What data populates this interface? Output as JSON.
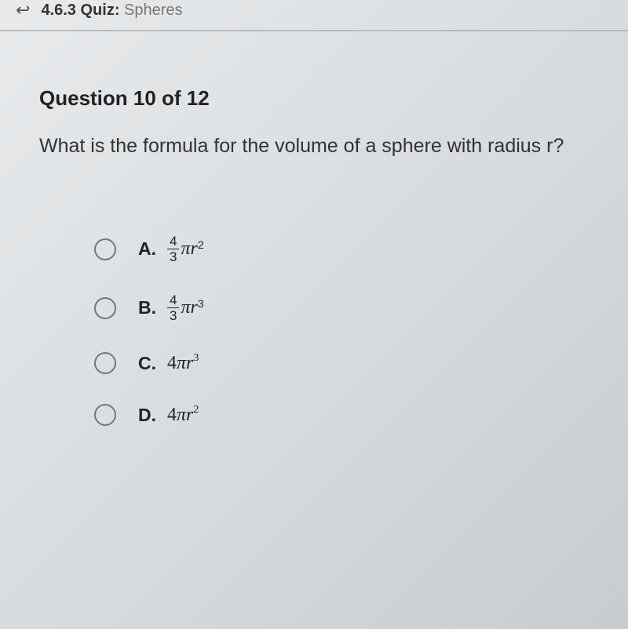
{
  "header": {
    "section_number": "4.6.3",
    "quiz_label": "Quiz:",
    "topic": "Spheres"
  },
  "question": {
    "number_label": "Question 10 of 12",
    "text": "What is the formula for the volume of a sphere with radius r?"
  },
  "options": [
    {
      "letter": "A.",
      "has_fraction": true,
      "frac_num": "4",
      "frac_den": "3",
      "coefficient": "",
      "variable": "πr",
      "exponent": "2"
    },
    {
      "letter": "B.",
      "has_fraction": true,
      "frac_num": "4",
      "frac_den": "3",
      "coefficient": "",
      "variable": "πr",
      "exponent": "3"
    },
    {
      "letter": "C.",
      "has_fraction": false,
      "frac_num": "",
      "frac_den": "",
      "coefficient": "4",
      "variable": "πr",
      "exponent": "3"
    },
    {
      "letter": "D.",
      "has_fraction": false,
      "frac_num": "",
      "frac_den": "",
      "coefficient": "4",
      "variable": "πr",
      "exponent": "2"
    }
  ],
  "colors": {
    "text_primary": "#222222",
    "text_secondary": "#555555",
    "border": "#b8bcbf",
    "radio_border": "#777777"
  }
}
